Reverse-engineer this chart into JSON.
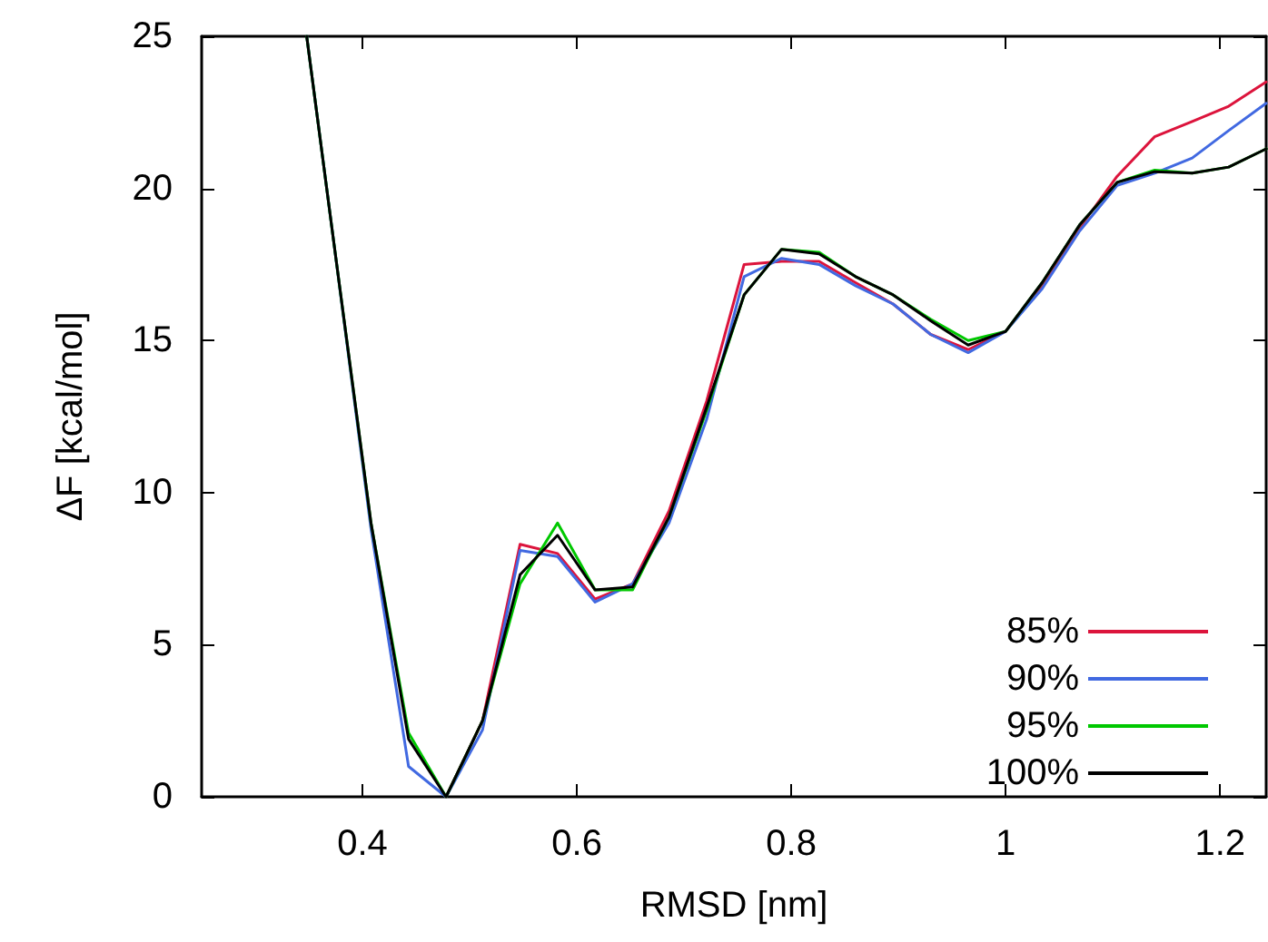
{
  "chart_data": {
    "type": "line",
    "xlabel": "RMSD [nm]",
    "ylabel": "ΔF [kcal/mol]",
    "x": [
      0.348,
      0.373,
      0.408,
      0.443,
      0.478,
      0.512,
      0.547,
      0.582,
      0.617,
      0.652,
      0.686,
      0.721,
      0.756,
      0.791,
      0.826,
      0.86,
      0.895,
      0.93,
      0.965,
      1.0,
      1.034,
      1.069,
      1.104,
      1.139,
      1.174,
      1.208,
      1.243
    ],
    "series": [
      {
        "name": "85%",
        "color": "#dc143c",
        "values": [
          null,
          null,
          null,
          null,
          0,
          2.5,
          8.3,
          8.0,
          6.5,
          7.0,
          9.4,
          13.0,
          17.5,
          17.6,
          17.6,
          16.9,
          16.2,
          15.2,
          14.7,
          15.3,
          16.8,
          18.7,
          20.4,
          21.7,
          22.2,
          22.7,
          23.5
        ]
      },
      {
        "name": "90%",
        "color": "#4169e1",
        "values": [
          25,
          18.3,
          8.8,
          1.0,
          0,
          2.2,
          8.1,
          7.9,
          6.4,
          7.0,
          9.0,
          12.4,
          17.1,
          17.7,
          17.5,
          16.8,
          16.2,
          15.2,
          14.6,
          15.3,
          16.7,
          18.6,
          20.1,
          20.5,
          21.0,
          21.9,
          22.8
        ]
      },
      {
        "name": "95%",
        "color": "#00c800",
        "values": [
          25,
          18.3,
          9.0,
          2.1,
          0,
          2.5,
          7.0,
          9.0,
          6.8,
          6.8,
          9.2,
          12.7,
          16.5,
          18.0,
          17.9,
          17.1,
          16.5,
          15.7,
          15.0,
          15.3,
          16.9,
          18.8,
          20.2,
          20.6,
          20.5,
          20.7,
          21.3
        ]
      },
      {
        "name": "100%",
        "color": "#000000",
        "values": [
          25,
          18.3,
          9.0,
          1.9,
          0,
          2.5,
          7.3,
          8.6,
          6.8,
          6.9,
          9.2,
          12.8,
          16.5,
          18.0,
          17.85,
          17.1,
          16.5,
          15.65,
          14.85,
          15.3,
          16.9,
          18.8,
          20.2,
          20.55,
          20.5,
          20.7,
          21.3
        ]
      }
    ],
    "xlim": [
      0.25,
      1.243
    ],
    "xticks": [
      0.4,
      0.6,
      0.8,
      1,
      1.2
    ],
    "ylim": [
      0,
      25
    ],
    "yticks": [
      0,
      5,
      10,
      15,
      20,
      25
    ],
    "grid": false,
    "legend": "bottom right",
    "marker": "none",
    "line_style": "solid"
  }
}
